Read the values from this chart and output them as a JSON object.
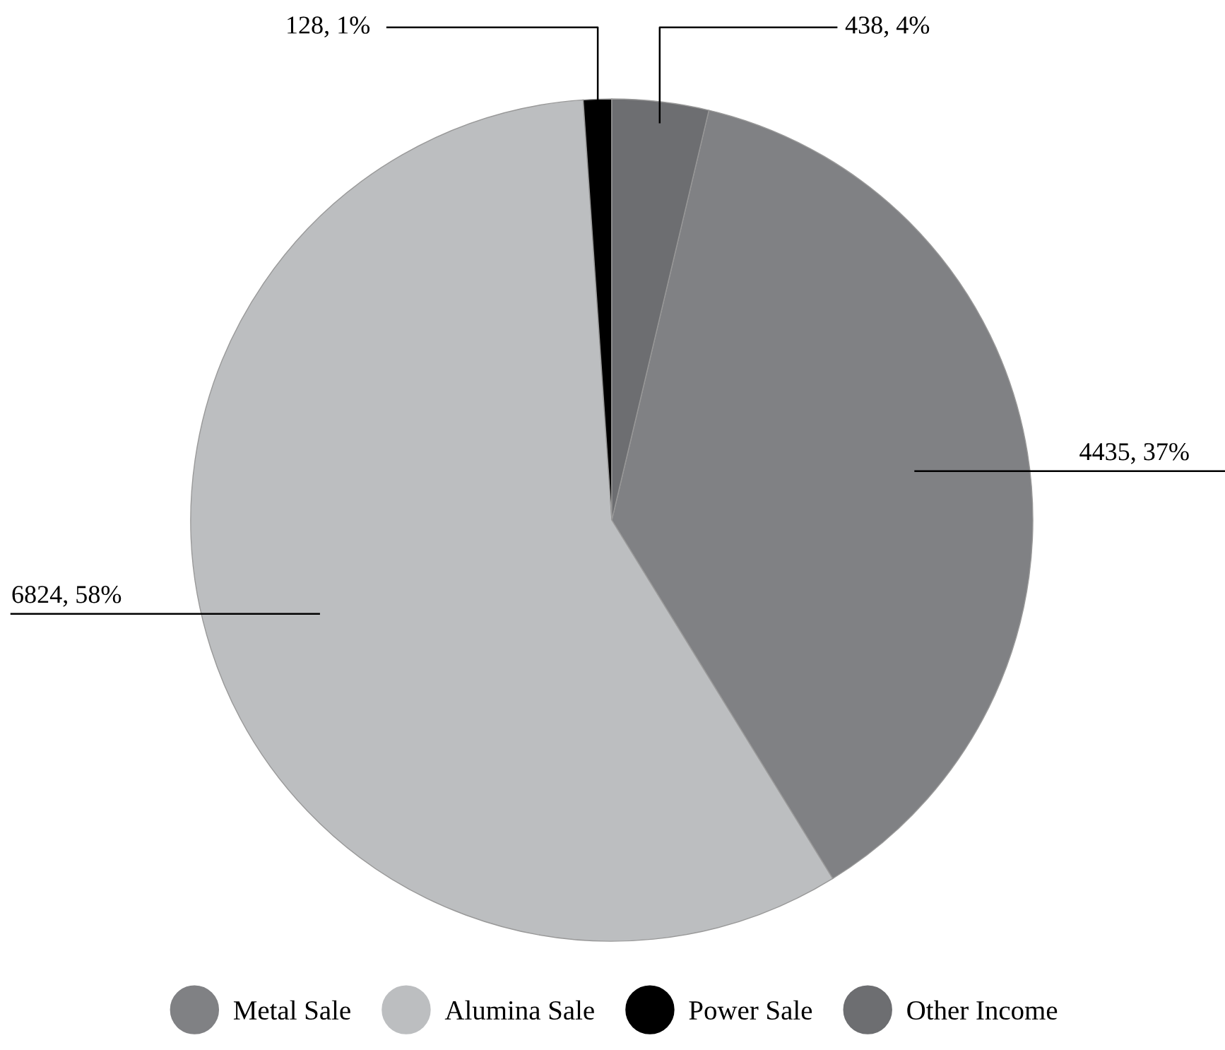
{
  "chart_data": {
    "type": "pie",
    "categories": [
      "Metal Sale",
      "Alumina Sale",
      "Power Sale",
      "Other Income"
    ],
    "values": [
      4435,
      6824,
      128,
      438
    ],
    "value_labels": [
      "4435, 37%",
      "6824, 58%",
      "128, 1%",
      "438, 4%"
    ],
    "colors": [
      "#808184",
      "#bcbec0",
      "#000000",
      "#6d6e71"
    ],
    "legend": "bottom"
  }
}
